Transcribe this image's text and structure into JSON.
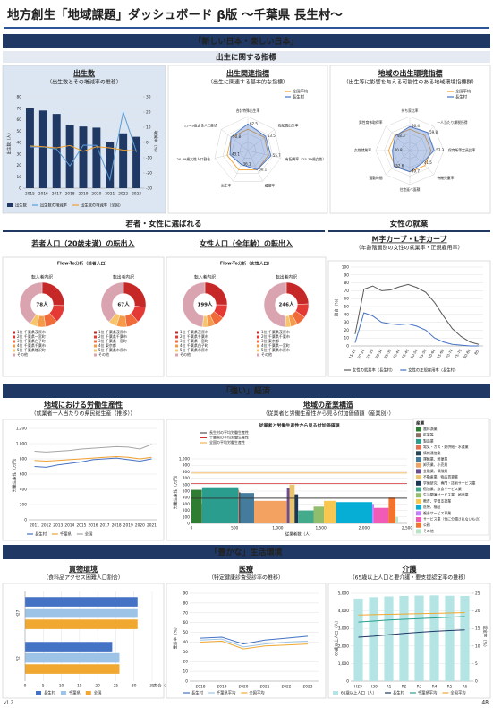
{
  "header": {
    "title": "地方創生「地域課題」ダッシュボード β版 ～千葉県 長生村～",
    "version": "v1.2",
    "page": "48"
  },
  "sections": [
    "「新しい日本・楽しい日本」",
    "「強い」経済",
    "「豊かな」生活環境"
  ],
  "bands": [
    "出生に関する指標",
    "若者・女性に選ばれる",
    "女性の就業"
  ],
  "chart_data": [
    {
      "type": "bar",
      "title": "出生数",
      "subtitle": "（出生数とその増減率の推移）",
      "categories": [
        "2015",
        "2016",
        "2017",
        "2018",
        "2019",
        "2020",
        "2021",
        "2022",
        "2023"
      ],
      "series": [
        {
          "name": "出生数",
          "color": "#1f3864",
          "values": [
            70,
            68,
            65,
            55,
            54,
            53,
            40,
            48,
            45
          ]
        },
        {
          "name": "出生数の増減率",
          "color": "#5b9bd5",
          "type": "line",
          "axis": "y2",
          "values": [
            -3,
            -2.9,
            -4.4,
            -15.4,
            -1.8,
            -1.9,
            -24.5,
            20,
            -6.3
          ]
        },
        {
          "name": "出生数の増減率（全国）",
          "color": "#f0a030",
          "type": "line",
          "axis": "y2",
          "values": [
            -2.3,
            -2.8,
            -3.5,
            -2.0,
            -5.8,
            -2.8,
            -3.5,
            -5.0,
            -5.6
          ]
        }
      ],
      "ylim": [
        0,
        80
      ],
      "yticks": [
        0,
        10,
        20,
        30,
        40,
        50,
        60,
        70,
        80
      ],
      "y2lim": [
        -30,
        30
      ],
      "y2ticks": [
        -30,
        -20,
        -10,
        0,
        10,
        20,
        30
      ],
      "ylabel": "出生数（人）",
      "y2label": "増減率（%）",
      "grid": true
    },
    {
      "type": "radar",
      "title": "出生関連指標",
      "subtitle": "（出生に関連する基本的な指標）",
      "categories": [
        "合計特殊出生率",
        "有配偶出生率",
        "有配偶率（25-39歳女性）",
        "婚姻率",
        "出生率",
        "20-39歳女性人口割合",
        "15-49歳女性人口割合"
      ],
      "series": [
        {
          "name": "全国平均",
          "color": "#f0a030",
          "values": [
            50,
            50,
            50,
            50,
            50,
            50,
            50
          ]
        },
        {
          "name": "長生村",
          "color": "#4472c4",
          "values": [
            62.5,
            53.5,
            55.7,
            50.1,
            36.1,
            43.1,
            50.8
          ]
        }
      ],
      "rlim": [
        0,
        80
      ],
      "rticks": [
        20,
        40,
        60,
        80
      ]
    },
    {
      "type": "radar",
      "title": "地域の出生環境指標",
      "subtitle": "（出生等に影響を与える可能性のある地域環境指標群）",
      "categories": [
        "持ち家比率",
        "一人当たり課税所得",
        "保育所等定員比率",
        "待機児童率",
        "住宅延べ面積",
        "通勤時間",
        "女性就業率",
        "男性育休取得率"
      ],
      "series": [
        {
          "name": "全国平均",
          "color": "#f0a030",
          "values": [
            50,
            50,
            50,
            50,
            50,
            50,
            50,
            50
          ]
        },
        {
          "name": "長生村",
          "color": "#4472c4",
          "values": [
            56.4,
            59.8,
            57.3,
            41.5,
            49.7,
            52.6,
            40.8,
            48.3
          ]
        }
      ],
      "rlim": [
        0,
        80
      ],
      "rticks": [
        20,
        40,
        60,
        80
      ]
    },
    {
      "type": "pie",
      "title": "若者人口（20歳未満）の転出入",
      "subtitle": "Flow-To分析（若者人口）",
      "colors": [
        "#c62828",
        "#e53935",
        "#f06a3a",
        "#f59a4a",
        "#f8c46a",
        "#d9a3b0"
      ],
      "series": [
        {
          "name": "転入者内訳",
          "center_label": "78人",
          "categories": [
            "1位 千葉県茂原市",
            "2位 千葉県一宮町",
            "3位 千葉県白子町",
            "4位 千葉県千葉市",
            "5位 千葉県睦沢町",
            "その他"
          ],
          "values": [
            20,
            10,
            7,
            5,
            4,
            32
          ]
        },
        {
          "name": "転出者内訳",
          "center_label": "67人",
          "categories": [
            "1位 千葉県茂原市",
            "2位 千葉県千葉市",
            "3位 千葉県一宮町",
            "4位 東京都",
            "5位 千葉県市原市",
            "その他"
          ],
          "values": [
            18,
            8,
            6,
            5,
            4,
            26
          ]
        }
      ]
    },
    {
      "type": "pie",
      "title": "女性人口（全年齢）の転出入",
      "subtitle": "Flow-To分析（女性人口）",
      "colors": [
        "#c62828",
        "#e53935",
        "#f06a3a",
        "#f59a4a",
        "#f8c46a",
        "#d9a3b0"
      ],
      "series": [
        {
          "name": "転入者内訳",
          "center_label": "199人",
          "categories": [
            "1位 千葉県茂原市",
            "2位 千葉県千葉市",
            "3位 千葉県一宮町",
            "4位 千葉県白子町",
            "5位 千葉県市原市",
            "その他"
          ],
          "values": [
            50,
            20,
            15,
            10,
            8,
            96
          ]
        },
        {
          "name": "転出者内訳",
          "center_label": "246人",
          "categories": [
            "1位 千葉県茂原市",
            "2位 千葉県千葉市",
            "3位 東京都",
            "4位 千葉県一宮町",
            "5位 千葉県市原市",
            "その他"
          ],
          "values": [
            60,
            25,
            18,
            12,
            10,
            121
          ]
        }
      ]
    },
    {
      "type": "line",
      "title": "M字カーブ・L字カーブ",
      "subtitle": "（年齢階層別の女性の就業率・正規雇用率）",
      "categories": [
        "15-19",
        "20-24",
        "25-29",
        "30-34",
        "35-39",
        "40-44",
        "45-49",
        "50-54",
        "55-59",
        "60-64",
        "65-69",
        "70-74",
        "75-79",
        "80-84",
        "85-"
      ],
      "series": [
        {
          "name": "女性の就業率（長生村）",
          "color": "#595959",
          "values": [
            15,
            72,
            76,
            70,
            71,
            75,
            78,
            74,
            68,
            55,
            38,
            22,
            12,
            5,
            2
          ]
        },
        {
          "name": "女性の正規雇用率（長生村）",
          "color": "#4472c4",
          "values": [
            4,
            42,
            38,
            30,
            28,
            27,
            28,
            25,
            20,
            10,
            5,
            2,
            1,
            0,
            0
          ]
        }
      ],
      "ylim": [
        0,
        100
      ],
      "yticks": [
        0,
        10,
        20,
        30,
        40,
        50,
        60,
        70,
        80,
        90,
        100
      ],
      "ylabel": "割合（%）",
      "grid": true
    },
    {
      "type": "line",
      "title": "地域における労働生産性",
      "subtitle": "（就業者一人当たりの県民総生産（推移））",
      "categories": [
        "2011",
        "2012",
        "2013",
        "2014",
        "2015",
        "2016",
        "2017",
        "2018",
        "2019",
        "2020",
        "2021"
      ],
      "series": [
        {
          "name": "長生村",
          "color": "#4472c4",
          "values": [
            700,
            690,
            720,
            740,
            760,
            790,
            800,
            810,
            790,
            770,
            800
          ]
        },
        {
          "name": "千葉県",
          "color": "#f0a030",
          "values": [
            780,
            770,
            780,
            790,
            800,
            810,
            820,
            830,
            820,
            800,
            820
          ]
        },
        {
          "name": "全国",
          "color": "#a5a5a5",
          "values": [
            900,
            890,
            900,
            910,
            930,
            940,
            950,
            960,
            955,
            930,
            990
          ]
        }
      ],
      "ylim": [
        0,
        1200
      ],
      "yticks": [
        0,
        200,
        400,
        600,
        800,
        {
          "value": 1000,
          "label": "1,000"
        },
        {
          "value": 1200,
          "label": "1,200"
        }
      ],
      "ylabel": "労働生産性（万円）",
      "grid": true
    },
    {
      "type": "bar",
      "title": "地域の産業構造",
      "subtitle": "（従業者と労働生産性から見る付加価値額（産業別））",
      "inner_title": "従業者と労働生産性から見る付加価値額",
      "legend_title": "産業",
      "categories": [
        "農林漁業",
        "鉱業等",
        "製造業",
        "電気・ガス・熱供給・水道業",
        "情報通信業",
        "運輸業、郵便業",
        "卸売業、小売業",
        "金融業、保険業",
        "不動産業、物品賃貸業",
        "学術研究、専門・技術サービス業",
        "宿泊業、飲食サービス業",
        "生活関連サービス業、娯楽業",
        "教育、学習支援業",
        "医療、福祉",
        "複合サービス事業",
        "サービス業（他に分類されないもの）",
        "公務",
        "その他"
      ],
      "colors": [
        "#2e7d32",
        "#8d6e63",
        "#2a9d8f",
        "#e76f51",
        "#264653",
        "#457b9d",
        "#f4a261",
        "#6a4c93",
        "#e9c46a",
        "#1d3557",
        "#43aa8b",
        "#90be6d",
        "#f9c74f",
        "#06aed5",
        "#c77dff",
        "#f15bb5",
        "#f3722c",
        "#b7e4c7"
      ],
      "values": [
        520,
        300,
        560,
        520,
        480,
        470,
        350,
        550,
        600,
        450,
        200,
        260,
        350,
        330,
        300,
        240,
        400,
        100
      ],
      "widths": [
        120,
        3,
        420,
        8,
        15,
        160,
        380,
        30,
        60,
        40,
        180,
        120,
        140,
        420,
        20,
        170,
        80,
        30
      ],
      "reference_lines": [
        {
          "name": "長生村の平均労働生産性",
          "value": 390,
          "color": "#333333"
        },
        {
          "name": "千葉県の平均労働生産性",
          "value": 620,
          "color": "#d32f2f"
        },
        {
          "name": "全国の平均労働生産性",
          "value": 780,
          "color": "#f0a030"
        }
      ],
      "xlim": [
        0,
        2500
      ],
      "xticks": [
        0,
        500,
        {
          "value": 1000,
          "label": "1,000"
        },
        {
          "value": 1500,
          "label": "1,500"
        },
        {
          "value": 2000,
          "label": "2,000"
        },
        {
          "value": 2500,
          "label": "2,500"
        }
      ],
      "ylim": [
        0,
        1000
      ],
      "yticks": [
        0,
        100,
        200,
        300,
        400,
        500,
        600,
        700,
        800,
        900,
        {
          "value": 1000,
          "label": "1,000"
        }
      ],
      "xlabel": "従業者数（人）",
      "ylabel": "労働生産性（万円）",
      "grid": true
    },
    {
      "type": "barh",
      "title": "買物環境",
      "subtitle": "（食料品アクセス困難人口割合）",
      "categories": [
        "H27",
        "R2"
      ],
      "series": [
        {
          "name": "長生村",
          "color": "#4472c4",
          "values": [
            31,
            24
          ]
        },
        {
          "name": "千葉県",
          "color": "#9dc3e6",
          "values": [
            31,
            26
          ]
        },
        {
          "name": "全国",
          "color": "#f0a830",
          "values": [
            31,
            26
          ]
        }
      ],
      "xlim": [
        0,
        35
      ],
      "xticks": [
        0,
        5,
        10,
        15,
        20,
        25,
        30,
        35
      ],
      "xlabel": "割合（%）",
      "grid": true
    },
    {
      "type": "line",
      "title": "医療",
      "subtitle": "（特定健康診査受診率の推移）",
      "categories": [
        "2018",
        "2019",
        "2020",
        "2021",
        "2022",
        "2023"
      ],
      "series": [
        {
          "name": "長生村",
          "color": "#4472c4",
          "values": [
            44,
            45,
            38,
            42,
            44,
            46
          ]
        },
        {
          "name": "千葉県平均",
          "color": "#9dc3e6",
          "values": [
            42,
            43,
            35,
            38,
            40,
            41
          ]
        },
        {
          "name": "全国平均",
          "color": "#f0a830",
          "values": [
            40,
            41,
            33,
            36,
            37,
            38
          ]
        }
      ],
      "ylim": [
        0,
        90
      ],
      "yticks": [
        0,
        10,
        20,
        30,
        40,
        50,
        60,
        70,
        80,
        90
      ],
      "ylabel": "受診率（%）",
      "grid": true
    },
    {
      "type": "bar",
      "title": "介護",
      "subtitle": "（65歳以上人口と要介護・要支援認定率の推移）",
      "categories": [
        "H29",
        "H30",
        "R1",
        "R2",
        "R3",
        "R4",
        "R5",
        "R6"
      ],
      "series": [
        {
          "name": "65歳以上人口（人）",
          "color": "#b4e5e4",
          "values": [
            4700,
            4780,
            4820,
            4850,
            4870,
            4880,
            4860,
            4850
          ]
        },
        {
          "name": "長生村",
          "color": "#1f3864",
          "type": "line",
          "axis": "y2",
          "values": [
            12.5,
            12.8,
            13.2,
            13.6,
            13.9,
            14.2,
            14.4,
            14.6
          ]
        },
        {
          "name": "千葉県平均",
          "color": "#2a9d8f",
          "type": "line",
          "axis": "y2",
          "values": [
            16.8,
            17.1,
            17.4,
            17.6,
            17.8,
            18.0,
            18.2,
            18.4
          ]
        },
        {
          "name": "全国平均",
          "color": "#f0a830",
          "type": "line",
          "axis": "y2",
          "values": [
            18.8,
            18.9,
            19.0,
            19.1,
            19.2,
            19.3,
            19.4,
            19.5
          ]
        }
      ],
      "ylim": [
        0,
        5000
      ],
      "yticks": [
        0,
        {
          "value": 1000,
          "label": "1,000"
        },
        {
          "value": 2000,
          "label": "2,000"
        },
        {
          "value": 3000,
          "label": "3,000"
        },
        {
          "value": 4000,
          "label": "4,000"
        },
        {
          "value": 5000,
          "label": "5,000"
        }
      ],
      "y2lim": [
        0,
        25
      ],
      "y2ticks": [
        0,
        5,
        10,
        15,
        20,
        25
      ],
      "ylabel": "65歳以上人口（人）",
      "y2label": "認定率（%）",
      "grid": true
    }
  ]
}
